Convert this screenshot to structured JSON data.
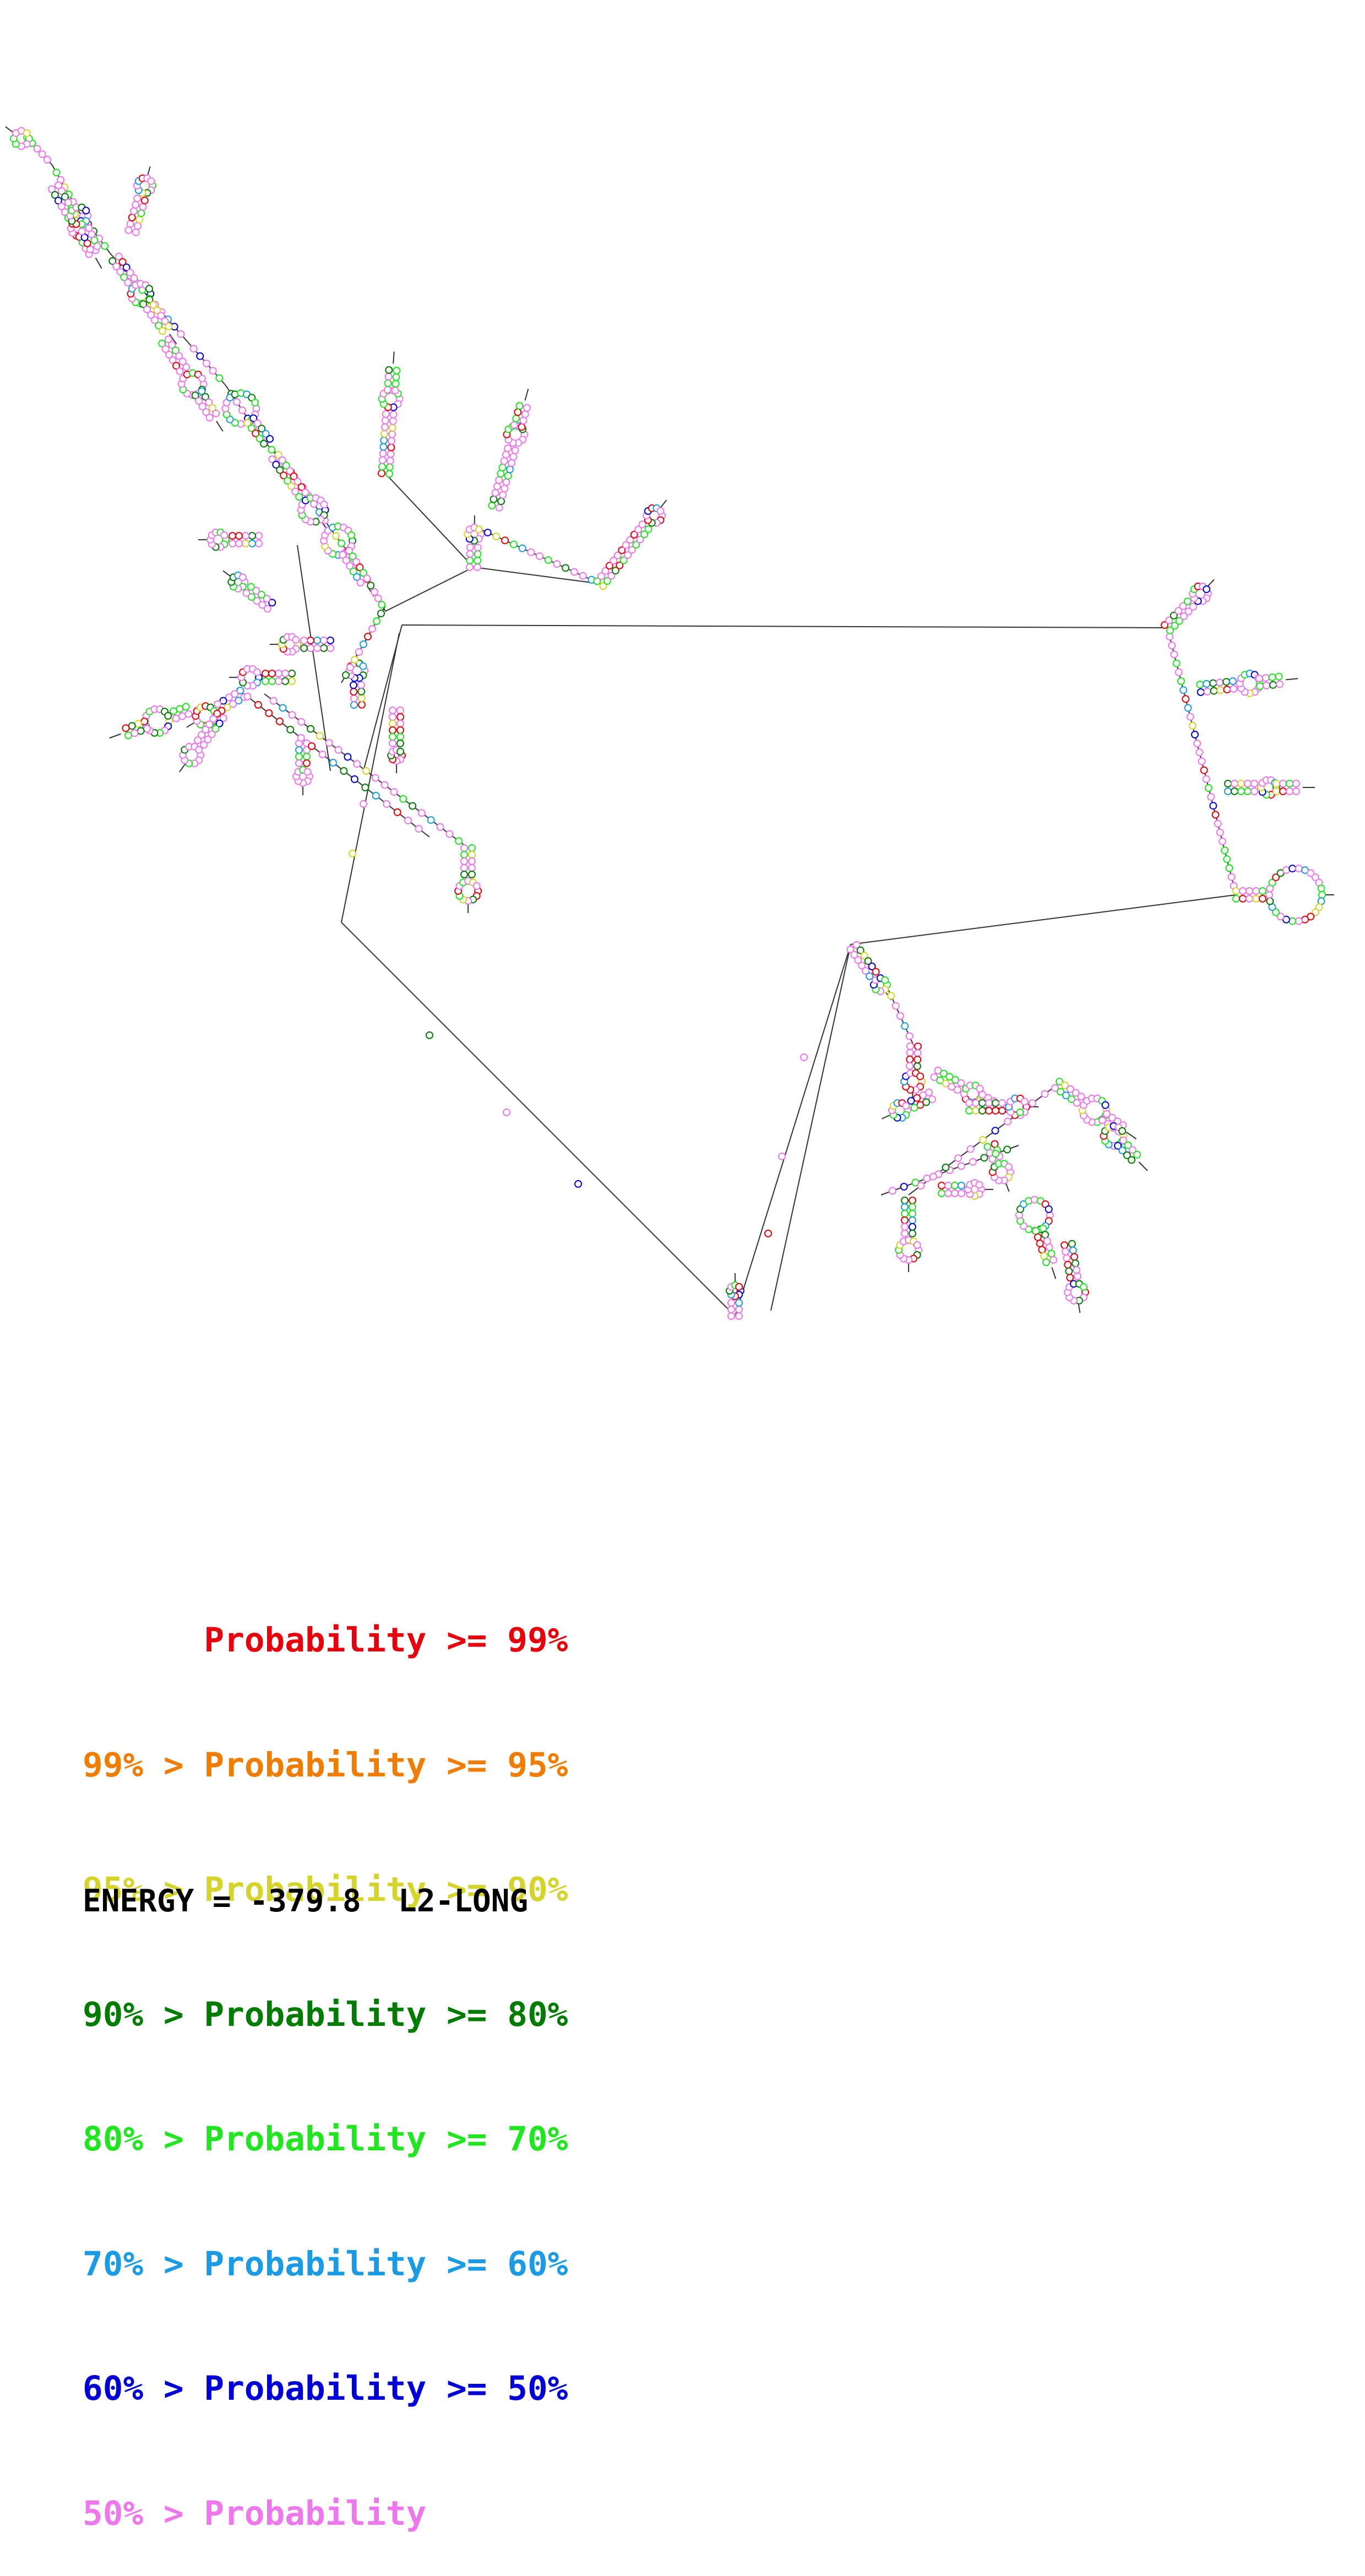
{
  "legend": {
    "rows": [
      {
        "prefix": "",
        "text": "Probability >= 99%",
        "color": "#e8000b"
      },
      {
        "prefix": "99% > ",
        "text": "Probability >= 95%",
        "color": "#f07d00"
      },
      {
        "prefix": "95% > ",
        "text": "Probability >= 90%",
        "color": "#d4d42a"
      },
      {
        "prefix": "90% > ",
        "text": "Probability >= 80%",
        "color": "#007d00"
      },
      {
        "prefix": "80% > ",
        "text": "Probability >= 70%",
        "color": "#1fe61f"
      },
      {
        "prefix": "70% > ",
        "text": "Probability >= 60%",
        "color": "#1a9be6"
      },
      {
        "prefix": "60% > ",
        "text": "Probability >= 50%",
        "color": "#0000d8"
      },
      {
        "prefix": "50% > ",
        "text": "Probability",
        "color": "#ee77ee"
      }
    ]
  },
  "energy": {
    "label": "ENERGY = -379.8  L2-LONG"
  },
  "diagram": {
    "colors": [
      "#e8000b",
      "#f07d00",
      "#d4d42a",
      "#007d00",
      "#1fe61f",
      "#1a9be6",
      "#0000d8",
      "#ee77ee"
    ]
  }
}
